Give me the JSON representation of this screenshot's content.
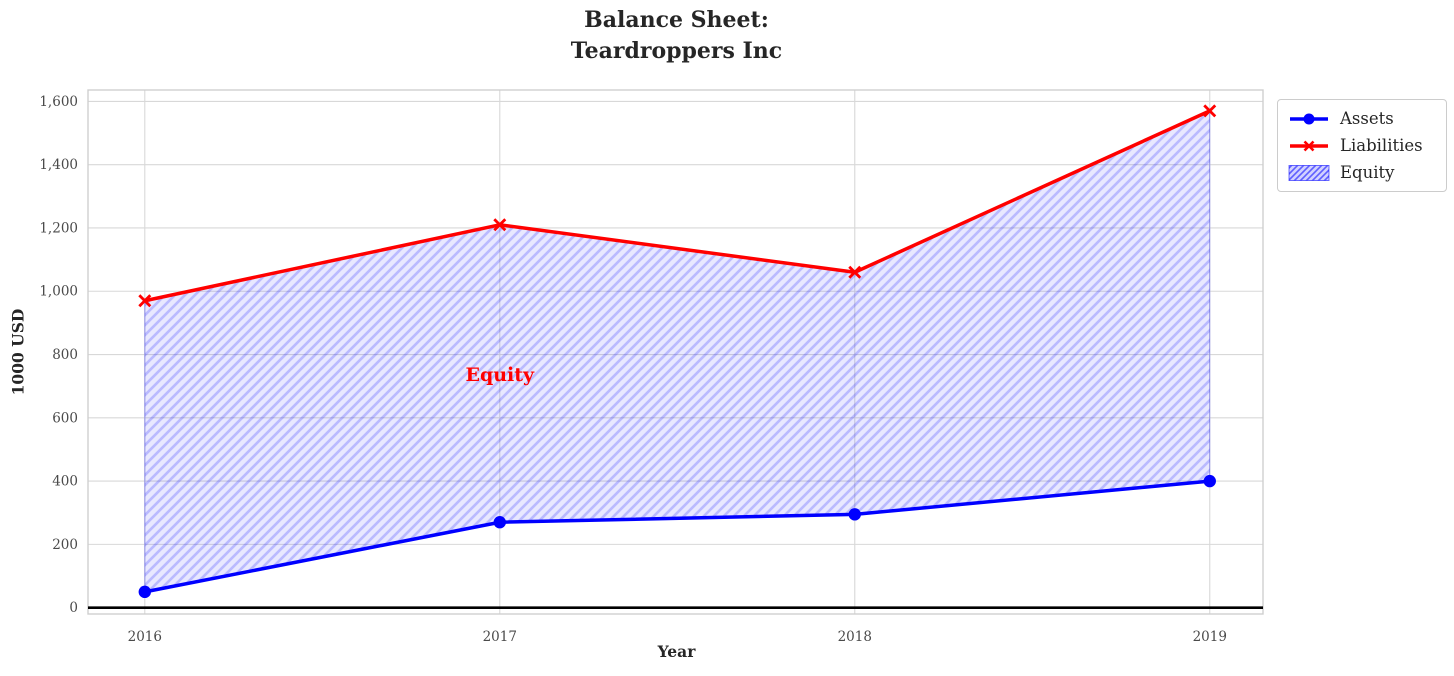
{
  "chart_data": {
    "type": "line",
    "title": "Balance Sheet:\nTeardroppers Inc",
    "xlabel": "Year",
    "ylabel": "1000 USD",
    "x": [
      2016,
      2017,
      2018,
      2019
    ],
    "x_tick_labels": [
      "2016",
      "2017",
      "2018",
      "2019"
    ],
    "series": [
      {
        "name": "Assets",
        "color": "#0000ff",
        "marker": "circle",
        "values": [
          50,
          270,
          295,
          400
        ]
      },
      {
        "name": "Liabilities",
        "color": "#ff0000",
        "marker": "x",
        "values": [
          970,
          1210,
          1060,
          1570
        ]
      }
    ],
    "area": {
      "name": "Equity",
      "between": [
        "Assets",
        "Liabilities"
      ],
      "fill_color": "#0000ff",
      "fill_alpha": 0.09,
      "hatch": "/",
      "hatch_alpha": 0.2
    },
    "annotation": {
      "text": "Equity",
      "x": 2017,
      "y": 735,
      "color": "#ff0000"
    },
    "yticks": {
      "values": [
        0,
        200,
        400,
        600,
        800,
        1000,
        1200,
        1400,
        1600
      ],
      "labels": [
        "0",
        "200",
        "400",
        "600",
        "800",
        "1,000",
        "1,200",
        "1,400",
        "1,600"
      ]
    },
    "xlim": [
      2015.84,
      2019.15
    ],
    "ylim": [
      -20,
      1636
    ],
    "grid": true,
    "zero_line_color": "#000000",
    "legend_position": "outside-upper-right"
  }
}
